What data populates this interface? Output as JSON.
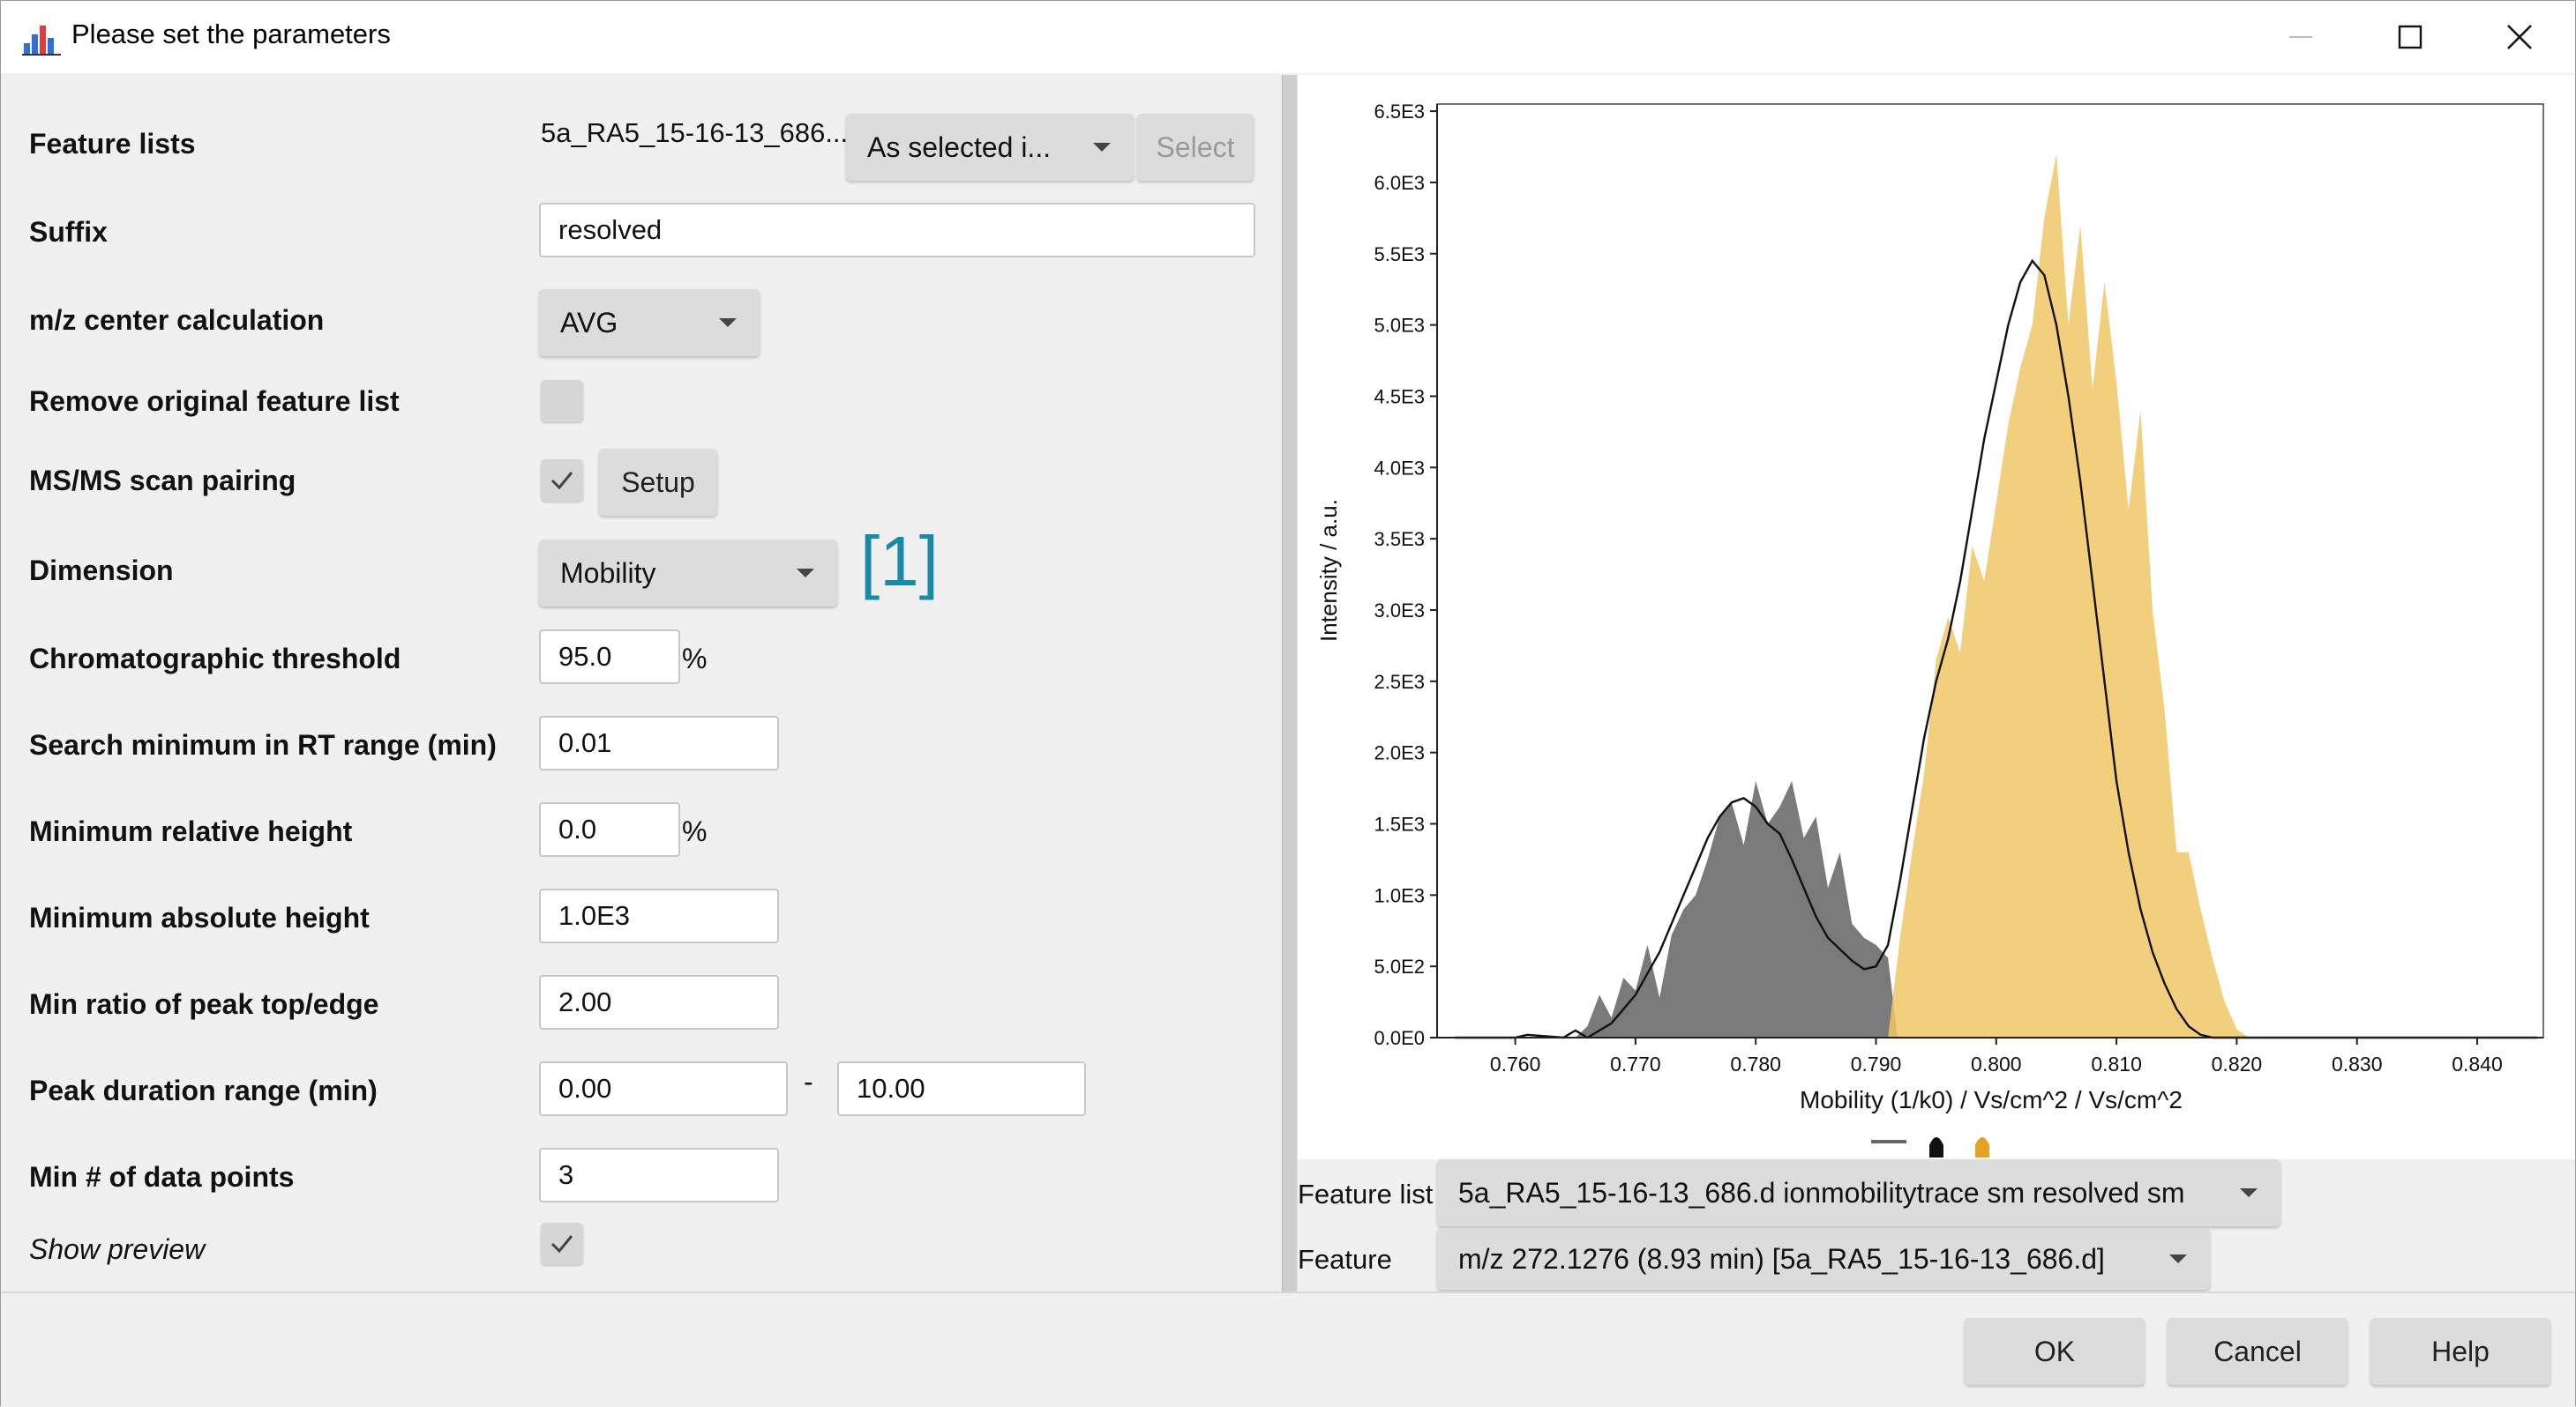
{
  "window": {
    "title": "Please set the parameters",
    "icons": {
      "app": "bar-chart-app-icon",
      "minimize": "minimize-icon",
      "maximize": "maximize-icon",
      "close": "close-icon"
    }
  },
  "params": {
    "feature_lists": {
      "label": "Feature lists",
      "value": "5a_RA5_15-16-13_686....",
      "mode": "As selected i...",
      "select_label": "Select"
    },
    "suffix": {
      "label": "Suffix",
      "value": "resolved"
    },
    "mz_center": {
      "label": "m/z center calculation",
      "value": "AVG"
    },
    "remove_original": {
      "label": "Remove original feature list",
      "checked": false
    },
    "msms": {
      "label": "MS/MS scan pairing",
      "checked": true,
      "setup_label": "Setup"
    },
    "dimension": {
      "label": "Dimension",
      "value": "Mobility",
      "annotation": "[1]"
    },
    "chrom_threshold": {
      "label": "Chromatographic threshold",
      "value": "95.0",
      "unit": "%"
    },
    "search_min": {
      "label": "Search minimum in RT range (min)",
      "value": "0.01"
    },
    "min_rel_height": {
      "label": "Minimum relative height",
      "value": "0.0",
      "unit": "%"
    },
    "min_abs_height": {
      "label": "Minimum absolute height",
      "value": "1.0E3"
    },
    "min_ratio": {
      "label": "Min ratio of peak top/edge",
      "value": "2.00"
    },
    "peak_duration": {
      "label": "Peak duration range (min)",
      "min": "0.00",
      "separator": "-",
      "max": "10.00"
    },
    "min_points": {
      "label": "Min # of data points",
      "value": "3"
    },
    "show_preview": {
      "label": "Show preview",
      "checked": true
    }
  },
  "preview": {
    "feature_list_label": "Feature list",
    "feature_list_value": "5a_RA5_15-16-13_686.d ionmobilitytrace  sm resolved  sm",
    "feature_label": "Feature",
    "feature_value": "m/z 272.1276 (8.93 min) [5a_RA5_15-16-13_686.d]"
  },
  "buttons": {
    "ok": "OK",
    "cancel": "Cancel",
    "help": "Help"
  },
  "colors": {
    "accent_annotation": "#1a8aa6",
    "peak_gray": "#7a7a7a",
    "peak_gold": "#f0c766",
    "legend_gold": "#e8a020"
  },
  "chart_data": {
    "type": "area",
    "xlabel": "Mobility (1/k0) / Vs/cm^2 / Vs/cm^2",
    "ylabel": "Intensity / a.u.",
    "xlim": [
      0.7535,
      0.8455
    ],
    "ylim": [
      0,
      6550
    ],
    "x_ticks": [
      0.76,
      0.77,
      0.78,
      0.79,
      0.8,
      0.81,
      0.82,
      0.83,
      0.84
    ],
    "x_tick_labels": [
      "0.760",
      "0.770",
      "0.780",
      "0.790",
      "0.800",
      "0.810",
      "0.820",
      "0.830",
      "0.840"
    ],
    "y_ticks": [
      0,
      500,
      1000,
      1500,
      2000,
      2500,
      3000,
      3500,
      4000,
      4500,
      5000,
      5500,
      6000,
      6500
    ],
    "y_tick_labels": [
      "0.0E0",
      "5.0E2",
      "1.0E3",
      "1.5E3",
      "2.0E3",
      "2.5E3",
      "3.0E3",
      "3.5E3",
      "4.0E3",
      "4.5E3",
      "5.0E3",
      "5.5E3",
      "6.0E3",
      "6.5E3"
    ],
    "grid": false,
    "legend": "bottom-center",
    "series": [
      {
        "color": "#7a7a7a",
        "x": [
          0.765,
          0.766,
          0.767,
          0.768,
          0.769,
          0.77,
          0.771,
          0.772,
          0.773,
          0.774,
          0.775,
          0.776,
          0.777,
          0.778,
          0.779,
          0.78,
          0.781,
          0.782,
          0.783,
          0.784,
          0.785,
          0.786,
          0.787,
          0.788,
          0.789,
          0.79,
          0.791,
          0.7918
        ],
        "y": [
          0,
          80,
          300,
          140,
          420,
          330,
          650,
          280,
          720,
          900,
          1000,
          1250,
          1550,
          1650,
          1350,
          1800,
          1500,
          1620,
          1800,
          1400,
          1550,
          1050,
          1300,
          800,
          700,
          650,
          560,
          0
        ]
      },
      {
        "color": "#f0c766",
        "x": [
          0.791,
          0.792,
          0.793,
          0.794,
          0.795,
          0.796,
          0.797,
          0.798,
          0.799,
          0.8,
          0.801,
          0.802,
          0.803,
          0.804,
          0.805,
          0.806,
          0.807,
          0.808,
          0.809,
          0.81,
          0.811,
          0.812,
          0.813,
          0.814,
          0.815,
          0.816,
          0.817,
          0.818,
          0.819,
          0.82,
          0.821
        ],
        "y": [
          0,
          700,
          1300,
          1850,
          2650,
          2950,
          2700,
          3450,
          3200,
          3750,
          4300,
          4700,
          5000,
          5750,
          6200,
          5000,
          5700,
          4550,
          5300,
          4600,
          3700,
          4400,
          3000,
          2300,
          1300,
          1300,
          900,
          550,
          250,
          60,
          0
        ]
      },
      {
        "color": "#111111",
        "x": [
          0.755,
          0.76,
          0.761,
          0.764,
          0.765,
          0.766,
          0.768,
          0.769,
          0.77,
          0.771,
          0.772,
          0.773,
          0.774,
          0.775,
          0.776,
          0.777,
          0.778,
          0.779,
          0.78,
          0.781,
          0.782,
          0.783,
          0.784,
          0.785,
          0.786,
          0.787,
          0.788,
          0.789,
          0.79,
          0.791,
          0.792,
          0.793,
          0.794,
          0.795,
          0.796,
          0.797,
          0.798,
          0.799,
          0.8,
          0.801,
          0.802,
          0.803,
          0.804,
          0.805,
          0.806,
          0.807,
          0.808,
          0.809,
          0.81,
          0.811,
          0.812,
          0.813,
          0.814,
          0.815,
          0.816,
          0.817,
          0.818,
          0.819,
          0.82,
          0.821,
          0.83,
          0.845
        ],
        "y": [
          0,
          0,
          20,
          0,
          50,
          0,
          100,
          200,
          300,
          450,
          600,
          800,
          1000,
          1200,
          1400,
          1550,
          1650,
          1680,
          1620,
          1500,
          1430,
          1250,
          1050,
          850,
          700,
          620,
          540,
          480,
          500,
          650,
          1100,
          1600,
          2100,
          2500,
          2800,
          3200,
          3700,
          4200,
          4600,
          5000,
          5300,
          5450,
          5350,
          5000,
          4500,
          3900,
          3200,
          2500,
          1800,
          1300,
          900,
          600,
          380,
          200,
          80,
          20,
          0,
          0,
          0,
          0,
          0,
          0
        ]
      }
    ]
  }
}
